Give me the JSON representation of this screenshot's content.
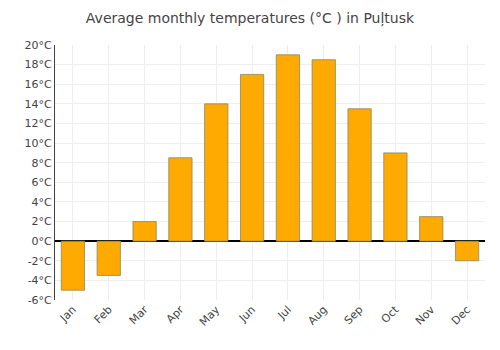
{
  "chart_data": {
    "type": "bar",
    "title": "Average monthly temperatures (°C ) in Puļtusk",
    "categories": [
      "Jan",
      "Feb",
      "Mar",
      "Apr",
      "May",
      "Jun",
      "Jul",
      "Aug",
      "Sep",
      "Oct",
      "Nov",
      "Dec"
    ],
    "values": [
      -5.0,
      -3.5,
      2.0,
      8.5,
      14.0,
      17.0,
      19.0,
      18.5,
      13.5,
      9.0,
      2.5,
      -2.0
    ],
    "color": "#FFAA00",
    "ylim": [
      -6,
      20
    ],
    "yticks": [
      {
        "value": -6,
        "label": "-6°C"
      },
      {
        "value": -4,
        "label": "-4°C"
      },
      {
        "value": -2,
        "label": "-2°C"
      },
      {
        "value": 0,
        "label": "0°C"
      },
      {
        "value": 2,
        "label": "2°C"
      },
      {
        "value": 4,
        "label": "4°C"
      },
      {
        "value": 6,
        "label": "6°C"
      },
      {
        "value": 8,
        "label": "8°C"
      },
      {
        "value": 10,
        "label": "10°C"
      },
      {
        "value": 12,
        "label": "12°C"
      },
      {
        "value": 14,
        "label": "14°C"
      },
      {
        "value": 16,
        "label": "16°C"
      },
      {
        "value": 18,
        "label": "18°C"
      },
      {
        "value": 20,
        "label": "20°C"
      }
    ],
    "grid": true
  }
}
